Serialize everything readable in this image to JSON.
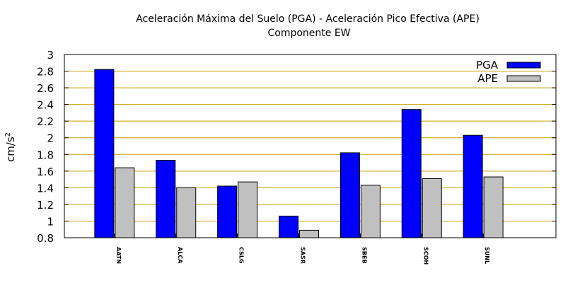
{
  "chart_data": {
    "type": "bar",
    "title": "Aceleración Máxima del Suelo (PGA) -  Aceleración Pico Efectiva (APE)",
    "subtitle": "Componente EW",
    "xlabel": "",
    "ylabel": "cm/s",
    "ylabel_superscript": "2",
    "ylim": [
      0.8,
      3.0
    ],
    "yticks": [
      "0.8",
      "1",
      "1.2",
      "1.4",
      "1.6",
      "1.8",
      "2",
      "2.2",
      "2.4",
      "2.6",
      "2.8",
      "3"
    ],
    "categories": [
      "AATN",
      "ALCA",
      "CSLG",
      "SASR",
      "SBEB",
      "SCOH",
      "SUNL"
    ],
    "series": [
      {
        "name": "PGA",
        "color": "#0000ff",
        "values": [
          2.82,
          1.73,
          1.42,
          1.06,
          1.82,
          2.34,
          2.03
        ]
      },
      {
        "name": "APE",
        "color": "#c0c0c0",
        "values": [
          1.64,
          1.4,
          1.47,
          0.89,
          1.43,
          1.51,
          1.53
        ]
      }
    ],
    "grid": true,
    "grid_color": "#c8a000",
    "legend_position": "top-right"
  }
}
